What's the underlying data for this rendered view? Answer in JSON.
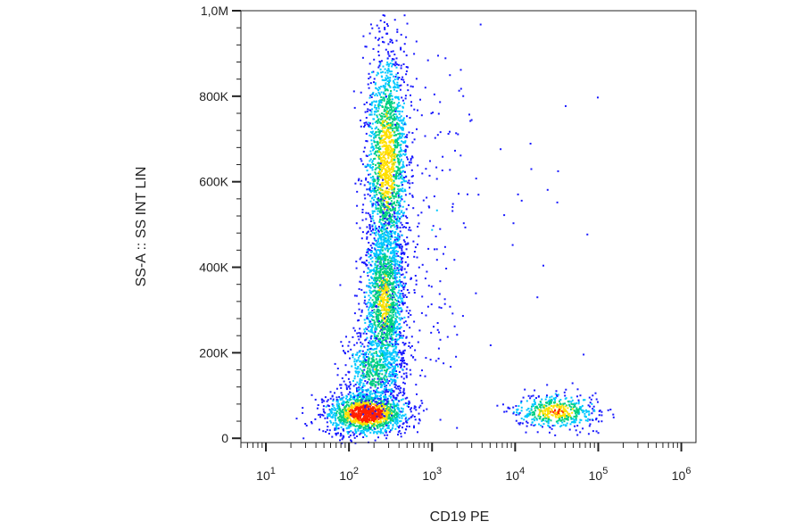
{
  "chart_data": {
    "type": "scatter",
    "title": "",
    "xlabel": "CD19 PE",
    "ylabel": "SS-A :: SS INT LIN",
    "x_scale": "log",
    "xlim": [
      5,
      1500000
    ],
    "ylim": [
      -10000,
      1000000
    ],
    "x_ticks": [
      {
        "value": 10,
        "base": "10",
        "exp": "1"
      },
      {
        "value": 100,
        "base": "10",
        "exp": "2"
      },
      {
        "value": 1000,
        "base": "10",
        "exp": "3"
      },
      {
        "value": 10000,
        "base": "10",
        "exp": "4"
      },
      {
        "value": 100000,
        "base": "10",
        "exp": "5"
      },
      {
        "value": 1000000,
        "base": "10",
        "exp": "6"
      }
    ],
    "y_ticks": [
      {
        "value": 0,
        "label": "0"
      },
      {
        "value": 200000,
        "label": "200K"
      },
      {
        "value": 400000,
        "label": "400K"
      },
      {
        "value": 600000,
        "label": "600K"
      },
      {
        "value": 800000,
        "label": "800K"
      },
      {
        "value": 1000000,
        "label": "1,0M"
      }
    ],
    "grid": false,
    "legend": "none",
    "colormap": [
      "#1a1aff",
      "#00c8ff",
      "#00d080",
      "#ffe000",
      "#ff2000"
    ],
    "populations": [
      {
        "x_center": 160,
        "y_center": 60000,
        "x_spread_decades": 0.25,
        "y_spread": 25000,
        "n": 1400,
        "peak_density": 1.0
      },
      {
        "x_center": 280,
        "y_center": 650000,
        "x_spread_decades": 0.13,
        "y_spread": 140000,
        "n": 1800,
        "peak_density": 0.7
      },
      {
        "x_center": 260,
        "y_center": 320000,
        "x_spread_decades": 0.13,
        "y_spread": 110000,
        "n": 1500,
        "peak_density": 0.6
      },
      {
        "x_center": 200,
        "y_center": 160000,
        "x_spread_decades": 0.18,
        "y_spread": 45000,
        "n": 500,
        "peak_density": 0.5
      },
      {
        "x_center": 30000,
        "y_center": 65000,
        "x_spread_decades": 0.25,
        "y_spread": 20000,
        "n": 500,
        "peak_density": 0.75
      },
      {
        "x_center": 900,
        "y_center": 500000,
        "x_spread_decades": 0.25,
        "y_spread": 220000,
        "n": 160,
        "peak_density": 0.1
      },
      {
        "x_center": 25000,
        "y_center": 550000,
        "x_spread_decades": 0.35,
        "y_spread": 180000,
        "n": 18,
        "peak_density": 0.05
      }
    ]
  }
}
